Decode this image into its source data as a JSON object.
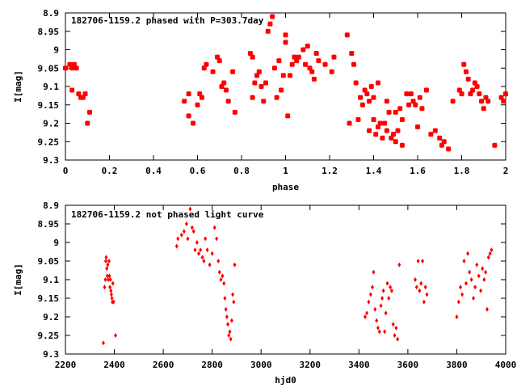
{
  "chart_data": [
    {
      "type": "scatter",
      "title": "182706-1159.2 phased with P=303.7day",
      "xlabel": "phase",
      "ylabel": "I[mag]",
      "xlim": [
        0,
        2
      ],
      "ylim": [
        9.3,
        8.9
      ],
      "y_inverted": true,
      "grid": false,
      "marker": "filled circle",
      "color": "#ff0000",
      "x_ticks": [
        "0",
        "0.2",
        "0.4",
        "0.6",
        "0.8",
        "1",
        "1.2",
        "1.4",
        "1.6",
        "1.8",
        "2"
      ],
      "y_ticks": [
        "8.9",
        "8.95",
        "9",
        "9.05",
        "9.1",
        "9.15",
        "9.2",
        "9.25",
        "9.3"
      ],
      "x_tick_values": [
        0,
        0.2,
        0.4,
        0.6,
        0.8,
        1,
        1.2,
        1.4,
        1.6,
        1.8,
        2
      ],
      "y_tick_values": [
        8.9,
        8.95,
        9.0,
        9.05,
        9.1,
        9.15,
        9.2,
        9.25,
        9.3
      ],
      "points": [
        [
          0.0,
          9.05
        ],
        [
          0.02,
          9.04
        ],
        [
          0.03,
          9.05
        ],
        [
          0.04,
          9.04
        ],
        [
          0.03,
          9.11
        ],
        [
          0.05,
          9.05
        ],
        [
          0.06,
          9.12
        ],
        [
          0.07,
          9.13
        ],
        [
          0.08,
          9.13
        ],
        [
          0.09,
          9.12
        ],
        [
          0.1,
          9.2
        ],
        [
          0.11,
          9.17
        ],
        [
          0.54,
          9.14
        ],
        [
          0.56,
          9.12
        ],
        [
          0.56,
          9.18
        ],
        [
          0.58,
          9.2
        ],
        [
          0.6,
          9.15
        ],
        [
          0.61,
          9.12
        ],
        [
          0.62,
          9.13
        ],
        [
          0.63,
          9.05
        ],
        [
          0.64,
          9.04
        ],
        [
          0.67,
          9.06
        ],
        [
          0.69,
          9.02
        ],
        [
          0.7,
          9.03
        ],
        [
          0.71,
          9.1
        ],
        [
          0.72,
          9.09
        ],
        [
          0.73,
          9.11
        ],
        [
          0.74,
          9.14
        ],
        [
          0.76,
          9.06
        ],
        [
          0.77,
          9.17
        ],
        [
          0.84,
          9.01
        ],
        [
          0.85,
          9.02
        ],
        [
          0.85,
          9.13
        ],
        [
          0.86,
          9.09
        ],
        [
          0.87,
          9.07
        ],
        [
          0.88,
          9.06
        ],
        [
          0.89,
          9.1
        ],
        [
          0.9,
          9.14
        ],
        [
          0.91,
          9.09
        ],
        [
          0.92,
          8.95
        ],
        [
          0.93,
          8.93
        ],
        [
          0.94,
          8.91
        ],
        [
          0.95,
          9.05
        ],
        [
          0.96,
          9.13
        ],
        [
          0.97,
          9.03
        ],
        [
          0.98,
          9.11
        ],
        [
          0.99,
          9.07
        ],
        [
          1.0,
          8.96
        ],
        [
          1.0,
          8.98
        ],
        [
          1.01,
          9.18
        ],
        [
          1.02,
          9.07
        ],
        [
          1.03,
          9.04
        ],
        [
          1.04,
          9.02
        ],
        [
          1.05,
          9.03
        ],
        [
          1.06,
          9.02
        ],
        [
          1.08,
          9.0
        ],
        [
          1.09,
          9.04
        ],
        [
          1.1,
          8.99
        ],
        [
          1.11,
          9.05
        ],
        [
          1.12,
          9.06
        ],
        [
          1.13,
          9.08
        ],
        [
          1.14,
          9.01
        ],
        [
          1.15,
          9.03
        ],
        [
          1.18,
          9.04
        ],
        [
          1.21,
          9.06
        ],
        [
          1.22,
          9.02
        ],
        [
          1.28,
          8.96
        ],
        [
          1.29,
          9.2
        ],
        [
          1.3,
          9.01
        ],
        [
          1.31,
          9.04
        ],
        [
          1.32,
          9.09
        ],
        [
          1.33,
          9.19
        ],
        [
          1.34,
          9.13
        ],
        [
          1.35,
          9.15
        ],
        [
          1.36,
          9.11
        ],
        [
          1.37,
          9.12
        ],
        [
          1.38,
          9.14
        ],
        [
          1.38,
          9.22
        ],
        [
          1.39,
          9.1
        ],
        [
          1.4,
          9.13
        ],
        [
          1.4,
          9.19
        ],
        [
          1.41,
          9.23
        ],
        [
          1.42,
          9.21
        ],
        [
          1.42,
          9.09
        ],
        [
          1.43,
          9.2
        ],
        [
          1.44,
          9.24
        ],
        [
          1.45,
          9.2
        ],
        [
          1.46,
          9.22
        ],
        [
          1.46,
          9.14
        ],
        [
          1.47,
          9.17
        ],
        [
          1.48,
          9.24
        ],
        [
          1.49,
          9.23
        ],
        [
          1.5,
          9.25
        ],
        [
          1.5,
          9.17
        ],
        [
          1.51,
          9.22
        ],
        [
          1.52,
          9.16
        ],
        [
          1.53,
          9.19
        ],
        [
          1.53,
          9.26
        ],
        [
          1.55,
          9.12
        ],
        [
          1.56,
          9.15
        ],
        [
          1.57,
          9.12
        ],
        [
          1.58,
          9.14
        ],
        [
          1.59,
          9.15
        ],
        [
          1.6,
          9.21
        ],
        [
          1.61,
          9.13
        ],
        [
          1.62,
          9.16
        ],
        [
          1.64,
          9.11
        ],
        [
          1.66,
          9.23
        ],
        [
          1.68,
          9.22
        ],
        [
          1.7,
          9.24
        ],
        [
          1.71,
          9.26
        ],
        [
          1.72,
          9.25
        ],
        [
          1.74,
          9.27
        ],
        [
          1.76,
          9.14
        ],
        [
          1.79,
          9.11
        ],
        [
          1.8,
          9.12
        ],
        [
          1.81,
          9.04
        ],
        [
          1.82,
          9.06
        ],
        [
          1.83,
          9.08
        ],
        [
          1.84,
          9.12
        ],
        [
          1.85,
          9.11
        ],
        [
          1.86,
          9.09
        ],
        [
          1.87,
          9.1
        ],
        [
          1.88,
          9.12
        ],
        [
          1.89,
          9.14
        ],
        [
          1.9,
          9.16
        ],
        [
          1.91,
          9.13
        ],
        [
          1.92,
          9.14
        ],
        [
          1.95,
          9.26
        ],
        [
          1.98,
          9.13
        ],
        [
          1.99,
          9.14
        ],
        [
          2.0,
          9.12
        ]
      ]
    },
    {
      "type": "scatter",
      "title": "182706-1159.2 not phased light curve",
      "xlabel": "hjd0",
      "ylabel": "I[mag]",
      "xlim": [
        2200,
        4000
      ],
      "ylim": [
        9.3,
        8.9
      ],
      "y_inverted": true,
      "grid": false,
      "marker": "small diamond",
      "color": "#ff0000",
      "x_ticks": [
        "2200",
        "2400",
        "2600",
        "2800",
        "3000",
        "3200",
        "3400",
        "3600",
        "3800",
        "4000"
      ],
      "y_ticks": [
        "8.9",
        "8.95",
        "9",
        "9.05",
        "9.1",
        "9.15",
        "9.2",
        "9.25",
        "9.3"
      ],
      "x_tick_values": [
        2200,
        2400,
        2600,
        2800,
        3000,
        3200,
        3400,
        3600,
        3800,
        4000
      ],
      "y_tick_values": [
        8.9,
        8.95,
        9.0,
        9.05,
        9.1,
        9.15,
        9.2,
        9.25,
        9.3
      ],
      "points": [
        [
          2355,
          9.27
        ],
        [
          2360,
          9.12
        ],
        [
          2363,
          9.1
        ],
        [
          2365,
          9.05
        ],
        [
          2367,
          9.04
        ],
        [
          2369,
          9.07
        ],
        [
          2371,
          9.09
        ],
        [
          2373,
          9.06
        ],
        [
          2375,
          9.1
        ],
        [
          2378,
          9.05
        ],
        [
          2380,
          9.09
        ],
        [
          2382,
          9.12
        ],
        [
          2384,
          9.1
        ],
        [
          2386,
          9.13
        ],
        [
          2388,
          9.14
        ],
        [
          2390,
          9.15
        ],
        [
          2392,
          9.16
        ],
        [
          2394,
          9.11
        ],
        [
          2397,
          9.16
        ],
        [
          2405,
          9.25
        ],
        [
          2655,
          9.01
        ],
        [
          2660,
          8.99
        ],
        [
          2675,
          8.98
        ],
        [
          2685,
          8.97
        ],
        [
          2695,
          8.95
        ],
        [
          2700,
          8.99
        ],
        [
          2710,
          8.91
        ],
        [
          2718,
          8.96
        ],
        [
          2724,
          8.97
        ],
        [
          2730,
          9.02
        ],
        [
          2738,
          9.0
        ],
        [
          2745,
          9.03
        ],
        [
          2752,
          9.02
        ],
        [
          2760,
          9.04
        ],
        [
          2766,
          9.05
        ],
        [
          2772,
          8.99
        ],
        [
          2780,
          9.02
        ],
        [
          2790,
          9.06
        ],
        [
          2800,
          9.03
        ],
        [
          2810,
          8.96
        ],
        [
          2818,
          8.99
        ],
        [
          2825,
          9.05
        ],
        [
          2830,
          9.08
        ],
        [
          2836,
          9.1
        ],
        [
          2842,
          9.09
        ],
        [
          2848,
          9.11
        ],
        [
          2852,
          9.15
        ],
        [
          2856,
          9.18
        ],
        [
          2860,
          9.2
        ],
        [
          2864,
          9.22
        ],
        [
          2868,
          9.25
        ],
        [
          2872,
          9.24
        ],
        [
          2876,
          9.26
        ],
        [
          2880,
          9.21
        ],
        [
          2884,
          9.14
        ],
        [
          2888,
          9.16
        ],
        [
          2892,
          9.06
        ],
        [
          3425,
          9.2
        ],
        [
          3432,
          9.19
        ],
        [
          3440,
          9.16
        ],
        [
          3448,
          9.14
        ],
        [
          3455,
          9.12
        ],
        [
          3460,
          9.08
        ],
        [
          3466,
          9.18
        ],
        [
          3472,
          9.21
        ],
        [
          3478,
          9.23
        ],
        [
          3484,
          9.24
        ],
        [
          3490,
          9.17
        ],
        [
          3495,
          9.15
        ],
        [
          3500,
          9.13
        ],
        [
          3505,
          9.24
        ],
        [
          3510,
          9.19
        ],
        [
          3516,
          9.11
        ],
        [
          3522,
          9.15
        ],
        [
          3528,
          9.12
        ],
        [
          3534,
          9.13
        ],
        [
          3540,
          9.22
        ],
        [
          3546,
          9.25
        ],
        [
          3552,
          9.23
        ],
        [
          3558,
          9.26
        ],
        [
          3565,
          9.06
        ],
        [
          3630,
          9.1
        ],
        [
          3636,
          9.12
        ],
        [
          3642,
          9.05
        ],
        [
          3648,
          9.13
        ],
        [
          3654,
          9.11
        ],
        [
          3660,
          9.05
        ],
        [
          3666,
          9.16
        ],
        [
          3672,
          9.12
        ],
        [
          3678,
          9.14
        ],
        [
          3800,
          9.2
        ],
        [
          3808,
          9.16
        ],
        [
          3815,
          9.12
        ],
        [
          3822,
          9.14
        ],
        [
          3830,
          9.05
        ],
        [
          3838,
          9.11
        ],
        [
          3845,
          9.03
        ],
        [
          3852,
          9.08
        ],
        [
          3860,
          9.1
        ],
        [
          3868,
          9.15
        ],
        [
          3875,
          9.12
        ],
        [
          3882,
          9.06
        ],
        [
          3890,
          9.09
        ],
        [
          3898,
          9.13
        ],
        [
          3905,
          9.07
        ],
        [
          3912,
          9.1
        ],
        [
          3918,
          9.08
        ],
        [
          3924,
          9.18
        ],
        [
          3930,
          9.04
        ],
        [
          3936,
          9.03
        ],
        [
          3942,
          9.02
        ]
      ]
    }
  ]
}
